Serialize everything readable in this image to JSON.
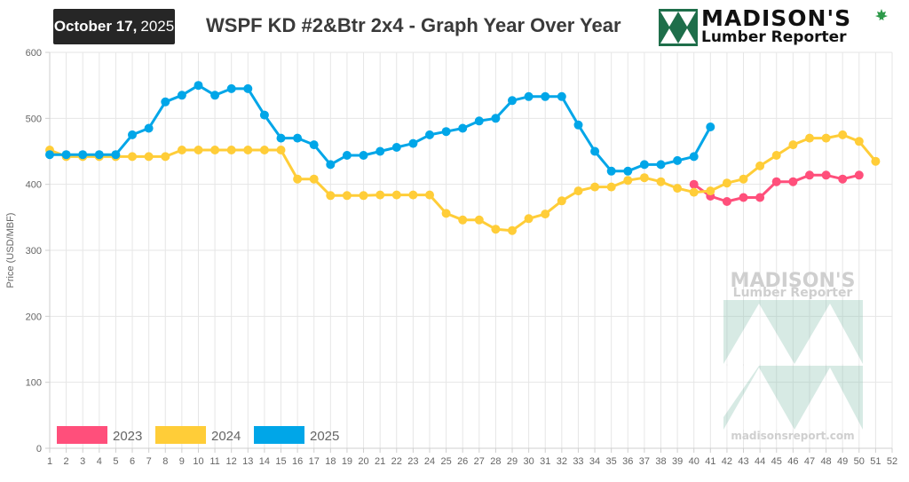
{
  "header": {
    "date_month_day": "October 17,",
    "date_year": "2025",
    "title": "WSPF KD #2&Btr 2x4 - Graph Year Over Year"
  },
  "logo": {
    "line1": "MADISON'S",
    "line2": "Lumber Reporter",
    "icon": "triangle-tree-logo-icon",
    "accent_color": "#1e6e4a",
    "leaf_icon": "maple-leaf-icon"
  },
  "watermark": {
    "line1": "MADISON'S",
    "line2": "Lumber Reporter",
    "url": "madisonsreport.com"
  },
  "chart_data": {
    "type": "line",
    "title": "WSPF KD #2&Btr 2x4 - Graph Year Over Year",
    "xlabel": "",
    "ylabel": "Price (USD/MBF)",
    "x": [
      1,
      2,
      3,
      4,
      5,
      6,
      7,
      8,
      9,
      10,
      11,
      12,
      13,
      14,
      15,
      16,
      17,
      18,
      19,
      20,
      21,
      22,
      23,
      24,
      25,
      26,
      27,
      28,
      29,
      30,
      31,
      32,
      33,
      34,
      35,
      36,
      37,
      38,
      39,
      40,
      41,
      42,
      43,
      44,
      45,
      46,
      47,
      48,
      49,
      50,
      51,
      52
    ],
    "xlim": [
      1,
      52
    ],
    "ylim": [
      0,
      600
    ],
    "yticks": [
      0,
      100,
      200,
      300,
      400,
      500,
      600
    ],
    "grid": true,
    "legend_position": "bottom-left",
    "series": [
      {
        "name": "2023",
        "color": "#ff4f7b",
        "points": [
          [
            40,
            400
          ],
          [
            41,
            382
          ],
          [
            42,
            374
          ],
          [
            43,
            380
          ],
          [
            44,
            380
          ],
          [
            45,
            404
          ],
          [
            46,
            404
          ],
          [
            47,
            414
          ],
          [
            48,
            414
          ],
          [
            49,
            408
          ],
          [
            50,
            414
          ]
        ]
      },
      {
        "name": "2024",
        "color": "#ffcd38",
        "points": [
          [
            1,
            452
          ],
          [
            2,
            442
          ],
          [
            3,
            442
          ],
          [
            4,
            442
          ],
          [
            5,
            442
          ],
          [
            6,
            442
          ],
          [
            7,
            442
          ],
          [
            8,
            442
          ],
          [
            9,
            452
          ],
          [
            10,
            452
          ],
          [
            11,
            452
          ],
          [
            12,
            452
          ],
          [
            13,
            452
          ],
          [
            14,
            452
          ],
          [
            15,
            452
          ],
          [
            16,
            408
          ],
          [
            17,
            408
          ],
          [
            18,
            383
          ],
          [
            19,
            383
          ],
          [
            20,
            383
          ],
          [
            21,
            384
          ],
          [
            22,
            384
          ],
          [
            23,
            384
          ],
          [
            24,
            384
          ],
          [
            25,
            356
          ],
          [
            26,
            346
          ],
          [
            27,
            346
          ],
          [
            28,
            332
          ],
          [
            29,
            330
          ],
          [
            30,
            348
          ],
          [
            31,
            355
          ],
          [
            32,
            375
          ],
          [
            33,
            390
          ],
          [
            34,
            396
          ],
          [
            35,
            396
          ],
          [
            36,
            406
          ],
          [
            37,
            410
          ],
          [
            38,
            404
          ],
          [
            39,
            394
          ],
          [
            40,
            388
          ],
          [
            41,
            390
          ],
          [
            42,
            402
          ],
          [
            43,
            408
          ],
          [
            44,
            428
          ],
          [
            45,
            444
          ],
          [
            46,
            460
          ],
          [
            47,
            470
          ],
          [
            48,
            470
          ],
          [
            49,
            475
          ],
          [
            50,
            465
          ],
          [
            51,
            435
          ]
        ]
      },
      {
        "name": "2025",
        "color": "#00a6e8",
        "points": [
          [
            1,
            445
          ],
          [
            2,
            445
          ],
          [
            3,
            445
          ],
          [
            4,
            445
          ],
          [
            5,
            445
          ],
          [
            6,
            475
          ],
          [
            7,
            485
          ],
          [
            8,
            525
          ],
          [
            9,
            535
          ],
          [
            10,
            550
          ],
          [
            11,
            535
          ],
          [
            12,
            545
          ],
          [
            13,
            545
          ],
          [
            14,
            505
          ],
          [
            15,
            470
          ],
          [
            16,
            470
          ],
          [
            17,
            460
          ],
          [
            18,
            430
          ],
          [
            19,
            444
          ],
          [
            20,
            444
          ],
          [
            21,
            450
          ],
          [
            22,
            456
          ],
          [
            23,
            462
          ],
          [
            24,
            475
          ],
          [
            25,
            480
          ],
          [
            26,
            485
          ],
          [
            27,
            496
          ],
          [
            28,
            500
          ],
          [
            29,
            527
          ],
          [
            30,
            533
          ],
          [
            31,
            533
          ],
          [
            32,
            533
          ],
          [
            33,
            490
          ],
          [
            34,
            450
          ],
          [
            35,
            420
          ],
          [
            36,
            420
          ],
          [
            37,
            430
          ],
          [
            38,
            430
          ],
          [
            39,
            436
          ],
          [
            40,
            442
          ],
          [
            41,
            487
          ]
        ]
      }
    ]
  }
}
